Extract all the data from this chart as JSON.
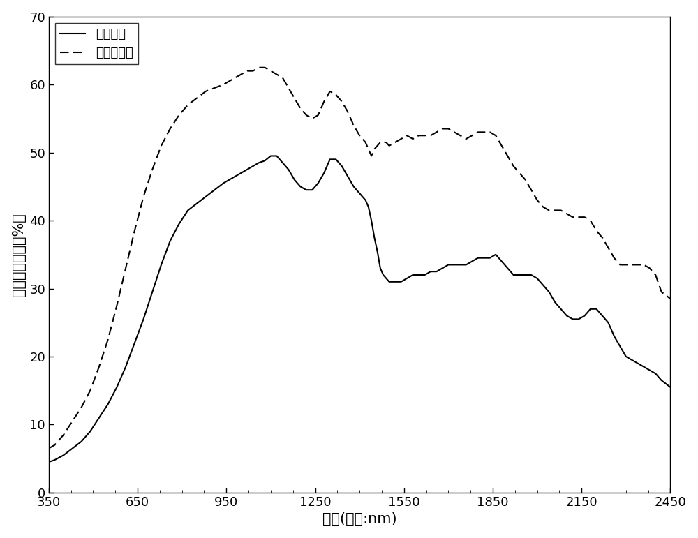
{
  "title": "",
  "xlabel": "波长(单位:nm)",
  "ylabel": "反射率（单位：%）",
  "legend_healthy": "健康小麦",
  "legend_diseased": "赤霏病小麦",
  "xlim": [
    350,
    2450
  ],
  "ylim": [
    0,
    70
  ],
  "xticks": [
    350,
    650,
    950,
    1250,
    1550,
    1850,
    2150,
    2450
  ],
  "yticks": [
    0,
    10,
    20,
    30,
    40,
    50,
    60,
    70
  ],
  "healthy_x": [
    350,
    370,
    400,
    430,
    460,
    490,
    520,
    550,
    580,
    610,
    640,
    670,
    700,
    730,
    760,
    790,
    820,
    850,
    880,
    910,
    940,
    960,
    980,
    1000,
    1020,
    1040,
    1060,
    1080,
    1100,
    1120,
    1140,
    1160,
    1180,
    1200,
    1220,
    1240,
    1260,
    1280,
    1300,
    1320,
    1340,
    1360,
    1380,
    1400,
    1420,
    1430,
    1440,
    1450,
    1460,
    1470,
    1480,
    1490,
    1500,
    1520,
    1540,
    1560,
    1580,
    1600,
    1620,
    1640,
    1660,
    1680,
    1700,
    1720,
    1740,
    1760,
    1780,
    1800,
    1820,
    1840,
    1860,
    1870,
    1880,
    1890,
    1900,
    1910,
    1920,
    1940,
    1960,
    1980,
    2000,
    2020,
    2040,
    2060,
    2080,
    2100,
    2120,
    2140,
    2160,
    2180,
    2200,
    2220,
    2240,
    2260,
    2280,
    2300,
    2320,
    2340,
    2360,
    2380,
    2400,
    2420,
    2450
  ],
  "healthy_y": [
    4.5,
    4.8,
    5.5,
    6.5,
    7.5,
    9.0,
    11.0,
    13.0,
    15.5,
    18.5,
    22.0,
    25.5,
    29.5,
    33.5,
    37.0,
    39.5,
    41.5,
    42.5,
    43.5,
    44.5,
    45.5,
    46.0,
    46.5,
    47.0,
    47.5,
    48.0,
    48.5,
    48.8,
    49.5,
    49.5,
    48.5,
    47.5,
    46.0,
    45.0,
    44.5,
    44.5,
    45.5,
    47.0,
    49.0,
    49.0,
    48.0,
    46.5,
    45.0,
    44.0,
    43.0,
    42.0,
    40.0,
    37.5,
    35.5,
    33.0,
    32.0,
    31.5,
    31.0,
    31.0,
    31.0,
    31.5,
    32.0,
    32.0,
    32.0,
    32.5,
    32.5,
    33.0,
    33.5,
    33.5,
    33.5,
    33.5,
    34.0,
    34.5,
    34.5,
    34.5,
    35.0,
    34.5,
    34.0,
    33.5,
    33.0,
    32.5,
    32.0,
    32.0,
    32.0,
    32.0,
    31.5,
    30.5,
    29.5,
    28.0,
    27.0,
    26.0,
    25.5,
    25.5,
    26.0,
    27.0,
    27.0,
    26.0,
    25.0,
    23.0,
    21.5,
    20.0,
    19.5,
    19.0,
    18.5,
    18.0,
    17.5,
    16.5,
    15.5
  ],
  "diseased_x": [
    350,
    370,
    400,
    430,
    460,
    490,
    520,
    550,
    580,
    610,
    640,
    670,
    700,
    730,
    760,
    790,
    820,
    850,
    880,
    910,
    940,
    960,
    980,
    1000,
    1020,
    1040,
    1060,
    1080,
    1100,
    1120,
    1140,
    1160,
    1180,
    1200,
    1220,
    1240,
    1260,
    1280,
    1300,
    1320,
    1340,
    1360,
    1380,
    1400,
    1420,
    1430,
    1440,
    1450,
    1460,
    1470,
    1480,
    1490,
    1500,
    1520,
    1540,
    1560,
    1580,
    1600,
    1620,
    1640,
    1660,
    1680,
    1700,
    1720,
    1740,
    1760,
    1780,
    1800,
    1820,
    1840,
    1860,
    1880,
    1900,
    1920,
    1940,
    1960,
    1980,
    2000,
    2020,
    2040,
    2060,
    2080,
    2100,
    2120,
    2140,
    2160,
    2180,
    2200,
    2220,
    2240,
    2260,
    2280,
    2300,
    2320,
    2340,
    2360,
    2380,
    2400,
    2420,
    2450
  ],
  "diseased_y": [
    6.5,
    7.0,
    8.5,
    10.5,
    12.5,
    15.0,
    18.5,
    22.5,
    27.5,
    33.0,
    38.5,
    43.5,
    47.5,
    51.0,
    53.5,
    55.5,
    57.0,
    58.0,
    59.0,
    59.5,
    60.0,
    60.5,
    61.0,
    61.5,
    62.0,
    62.0,
    62.5,
    62.5,
    62.0,
    61.5,
    61.0,
    59.5,
    58.0,
    56.5,
    55.5,
    55.0,
    55.5,
    57.5,
    59.0,
    58.5,
    57.5,
    56.0,
    54.0,
    52.5,
    51.5,
    50.5,
    49.5,
    50.5,
    51.0,
    51.5,
    51.5,
    51.5,
    51.0,
    51.5,
    52.0,
    52.5,
    52.0,
    52.5,
    52.5,
    52.5,
    53.0,
    53.5,
    53.5,
    53.0,
    52.5,
    52.0,
    52.5,
    53.0,
    53.0,
    53.0,
    52.5,
    51.0,
    49.5,
    48.0,
    47.0,
    46.0,
    44.5,
    43.0,
    42.0,
    41.5,
    41.5,
    41.5,
    41.0,
    40.5,
    40.5,
    40.5,
    40.0,
    38.5,
    37.5,
    36.0,
    34.5,
    33.5,
    33.5,
    33.5,
    33.5,
    33.5,
    33.0,
    32.0,
    29.5,
    28.5
  ],
  "line_color": "#000000",
  "background_color": "#ffffff",
  "figsize": [
    10.0,
    7.71
  ],
  "dpi": 100
}
